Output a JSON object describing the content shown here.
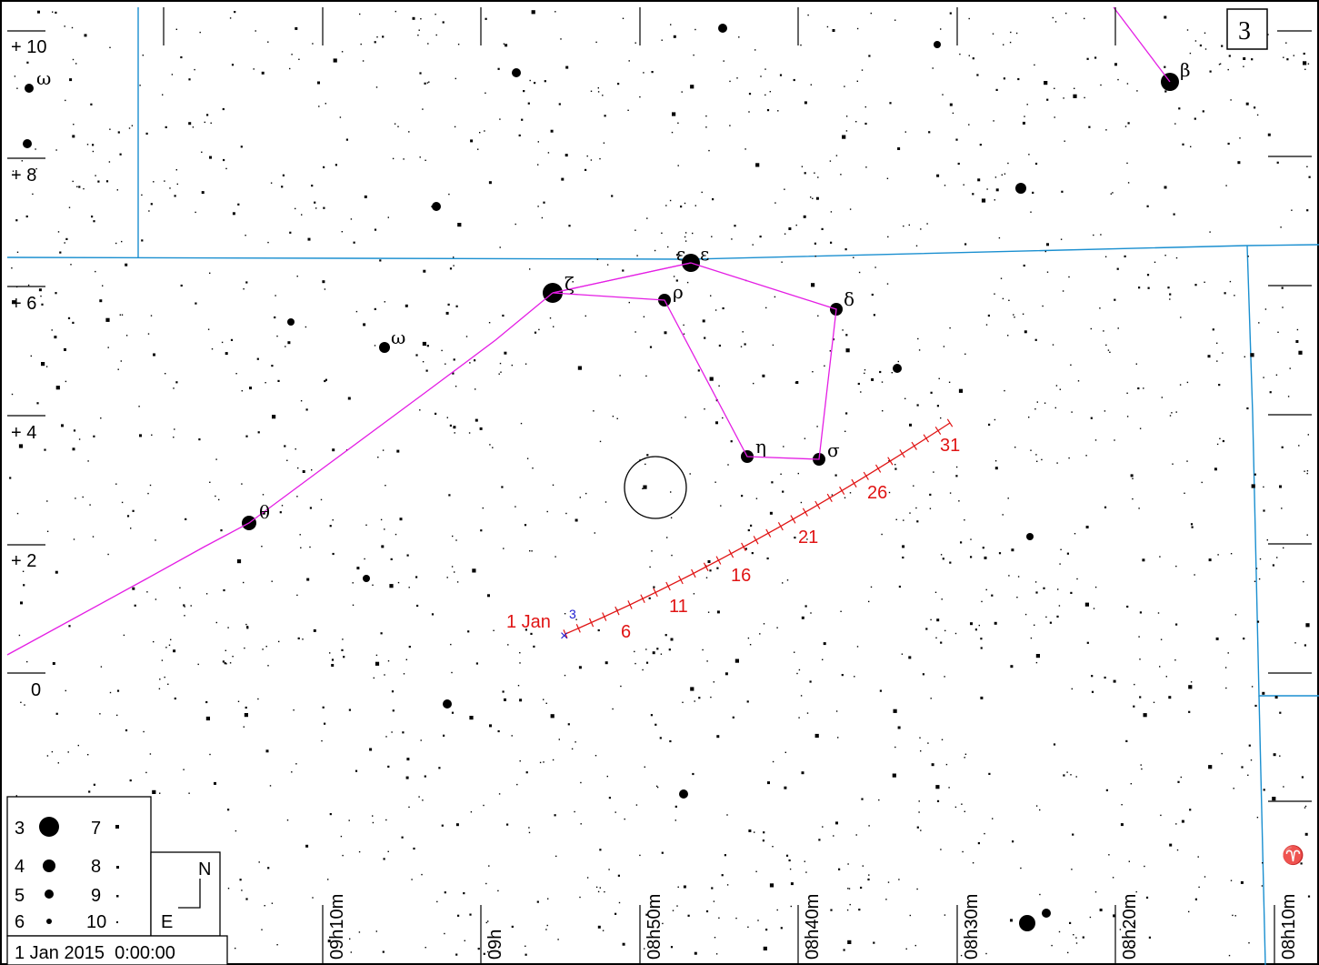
{
  "page_number": "3",
  "date_label": "1 Jan 2015  0:00:00",
  "compass": {
    "north": "N",
    "east": "E"
  },
  "dec_labels": [
    "+ 10",
    "+ 8",
    "+ 6",
    "+ 4",
    "+ 2",
    "0"
  ],
  "ra_labels": [
    "09h10m",
    "09h",
    "08h50m",
    "08h40m",
    "08h30m",
    "08h20m",
    "08h10m"
  ],
  "magnitude_legend": [
    {
      "mag": "3"
    },
    {
      "mag": "4"
    },
    {
      "mag": "5"
    },
    {
      "mag": "6"
    },
    {
      "mag": "7"
    },
    {
      "mag": "8"
    },
    {
      "mag": "9"
    },
    {
      "mag": "10"
    }
  ],
  "track": {
    "start_label": "1 Jan",
    "start_marker": "3",
    "day_labels": [
      "6",
      "11",
      "16",
      "21",
      "26",
      "31"
    ]
  },
  "star_labels": [
    "ω",
    "ζ",
    "ρ",
    "ε",
    "ε",
    "δ",
    "ω",
    "η",
    "σ",
    "θ",
    "β",
    "♈"
  ],
  "colors": {
    "boundary": "#1a8fd0",
    "asterism": "#e41ee4",
    "track": "#e01414",
    "marker": "#1a1ad0"
  }
}
